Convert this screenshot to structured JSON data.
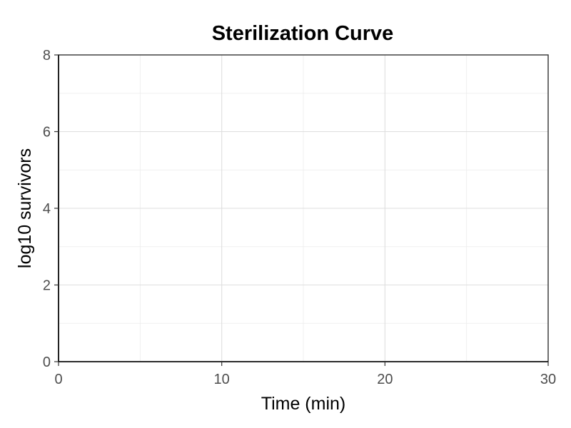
{
  "chart_data": {
    "type": "line",
    "title": "Sterilization Curve",
    "xlabel": "Time (min)",
    "ylabel": "log10 survivors",
    "xlim": [
      0,
      30
    ],
    "ylim": [
      0,
      8
    ],
    "x_ticks": [
      0,
      10,
      20,
      30
    ],
    "y_ticks": [
      0,
      2,
      4,
      6,
      8
    ],
    "x_minor_ticks": [
      5,
      15,
      25
    ],
    "y_minor_ticks": [
      1,
      3,
      5,
      7
    ],
    "grid": true,
    "legend": "none",
    "series": []
  }
}
